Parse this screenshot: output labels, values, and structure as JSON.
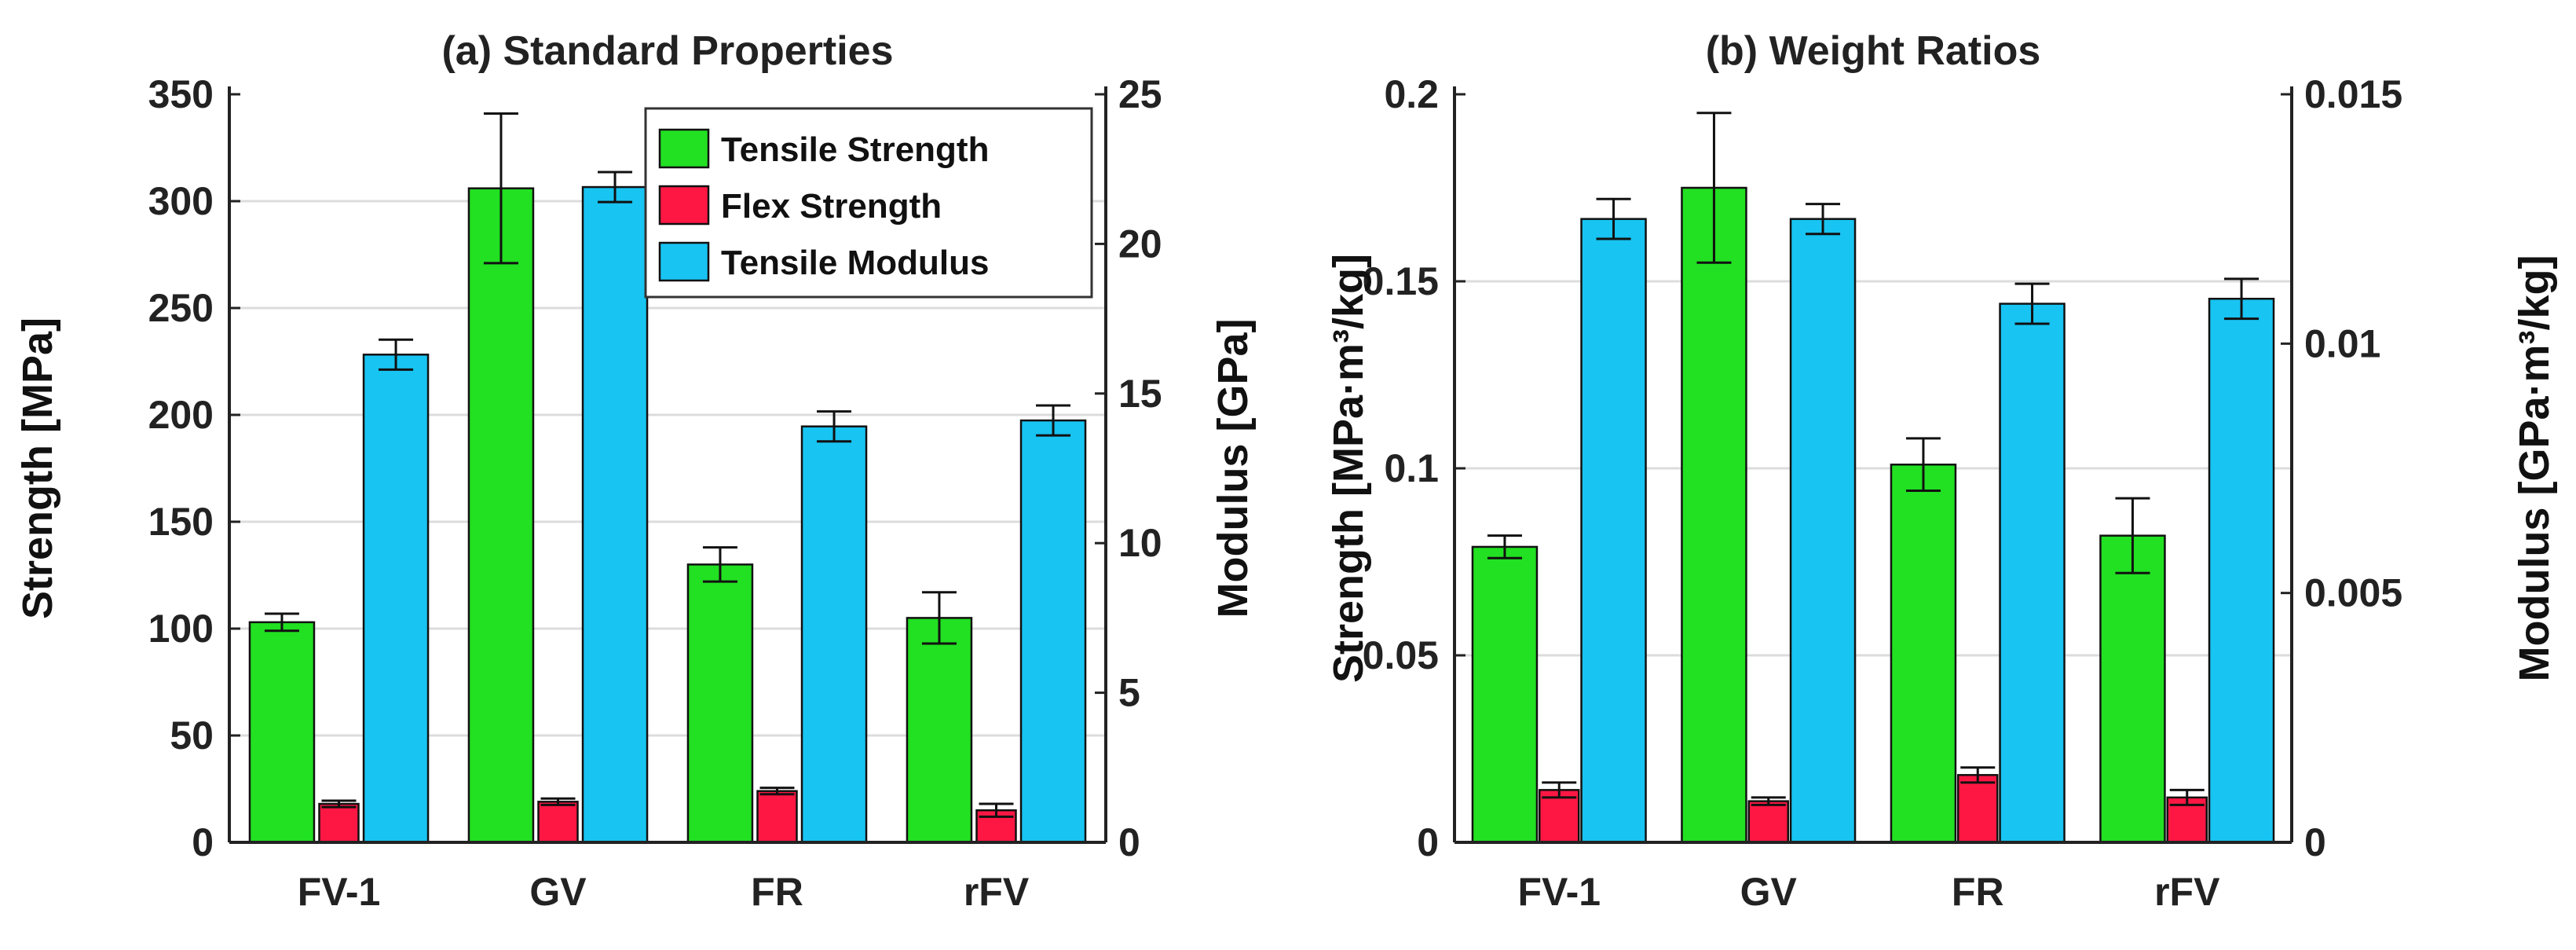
{
  "colors": {
    "tensile_strength": "#22e022",
    "flex_strength": "#ff1744",
    "tensile_modulus": "#18c4f2",
    "grid": "#dcdcdc",
    "axis": "#222222"
  },
  "legend": {
    "placement": "top-right",
    "entries": [
      "Tensile Strength",
      "Flex Strength",
      "Tensile Modulus"
    ]
  },
  "chart_data": [
    {
      "type": "bar",
      "title": "(a) Standard Properties",
      "categories": [
        "FV-1",
        "GV",
        "FR",
        "rFV"
      ],
      "ylabel": "Strength [MPa]",
      "ylabel_right": "Modulus [GPa]",
      "ylim": [
        0,
        350
      ],
      "yticks": [
        "0",
        "50",
        "100",
        "150",
        "200",
        "250",
        "300",
        "350"
      ],
      "ylim_right": [
        0,
        25
      ],
      "yticks_right": [
        "0",
        "5",
        "10",
        "15",
        "20",
        "25"
      ],
      "grid": true,
      "series": [
        {
          "name": "Tensile Strength",
          "axis": "left",
          "values": [
            103,
            306,
            130,
            105
          ],
          "errors": [
            4,
            35,
            8,
            12
          ]
        },
        {
          "name": "Flex Strength",
          "axis": "left",
          "values": [
            18,
            19,
            24,
            15
          ],
          "errors": [
            1.5,
            1.5,
            1.5,
            3
          ]
        },
        {
          "name": "Tensile Modulus",
          "axis": "right",
          "values": [
            16.3,
            21.9,
            13.9,
            14.1
          ],
          "errors": [
            0.5,
            0.5,
            0.5,
            0.5
          ]
        }
      ]
    },
    {
      "type": "bar",
      "title": "(b) Weight Ratios",
      "categories": [
        "FV-1",
        "GV",
        "FR",
        "rFV"
      ],
      "ylabel": "Strength [MPa·m³/kg]",
      "ylabel_right": "Modulus [GPa·m³/kg]",
      "ylim": [
        0,
        0.2
      ],
      "yticks": [
        "0",
        "0.05",
        "0.1",
        "0.15",
        "0.2"
      ],
      "ylim_right": [
        0,
        0.015
      ],
      "yticks_right": [
        "0",
        "0.005",
        "0.01",
        "0.015"
      ],
      "grid": true,
      "series": [
        {
          "name": "Tensile Strength",
          "axis": "left",
          "values": [
            0.079,
            0.175,
            0.101,
            0.082
          ],
          "errors": [
            0.003,
            0.02,
            0.007,
            0.01
          ]
        },
        {
          "name": "Flex Strength",
          "axis": "left",
          "values": [
            0.014,
            0.011,
            0.018,
            0.012
          ],
          "errors": [
            0.002,
            0.001,
            0.002,
            0.002
          ]
        },
        {
          "name": "Tensile Modulus",
          "axis": "right",
          "values": [
            0.0125,
            0.0125,
            0.0108,
            0.0109
          ],
          "errors": [
            0.0004,
            0.0003,
            0.0004,
            0.0004
          ]
        }
      ]
    }
  ]
}
